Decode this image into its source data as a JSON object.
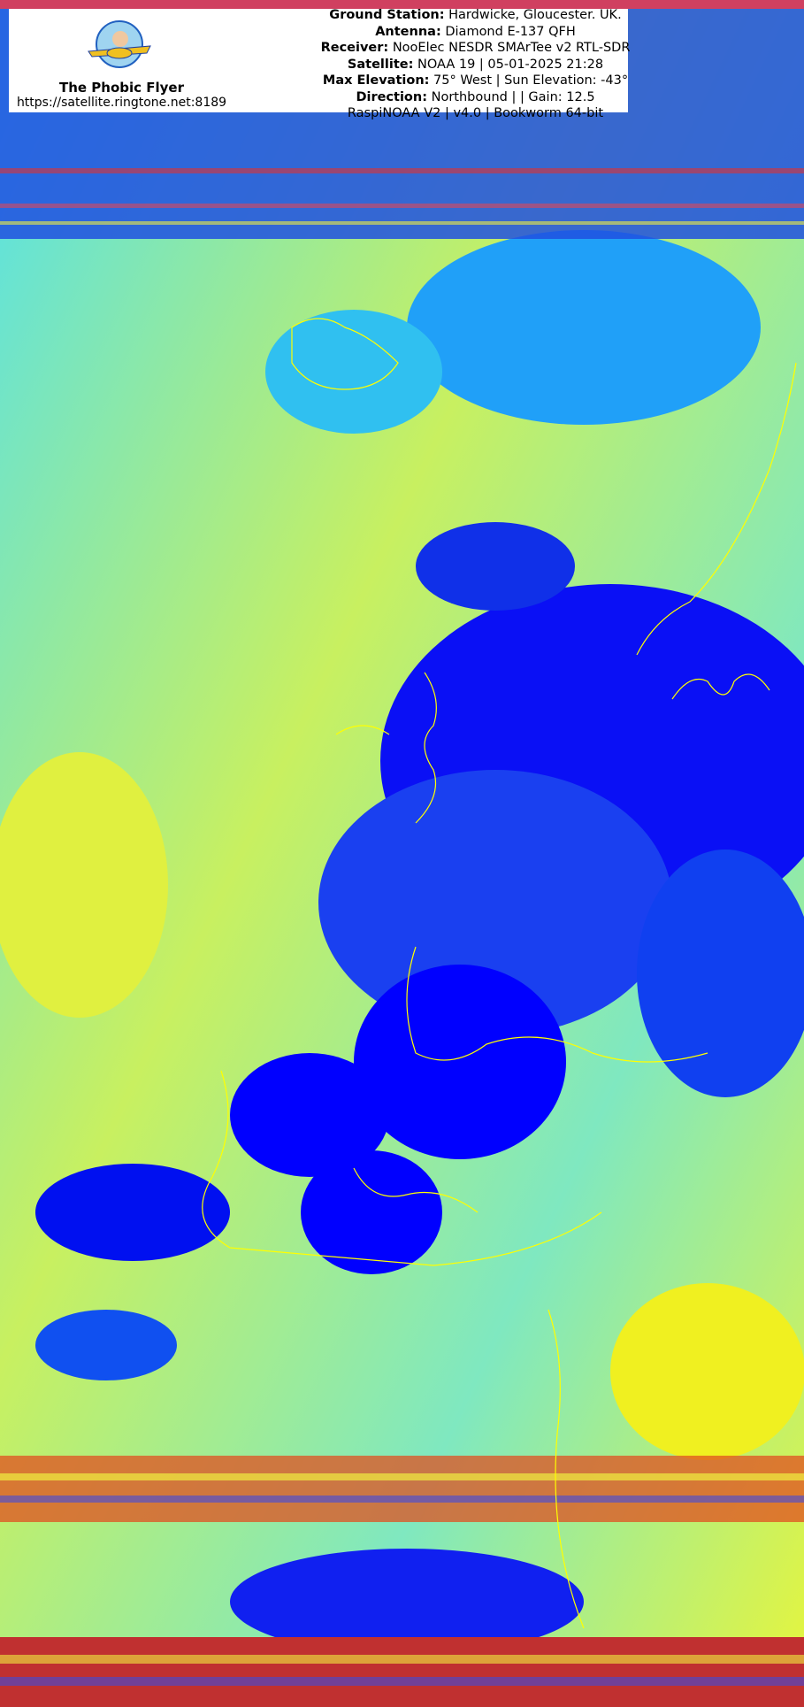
{
  "header": {
    "brand_name": "The Phobic Flyer",
    "url": "https://satellite.ringtone.net:8189",
    "logo_text": "The Phobic Flyer",
    "info_lines": [
      {
        "label": "Ground Station:",
        "value": " Hardwicke, Gloucester. UK."
      },
      {
        "label": "Antenna:",
        "value": " Diamond E-137 QFH"
      },
      {
        "label": "Receiver:",
        "value": " NooElec NESDR SMArTee v2 RTL-SDR"
      },
      {
        "label": "Satellite:",
        "value": " NOAA 19 | 05-01-2025 21:28"
      },
      {
        "label": "Max Elevation:",
        "value": " 75° West | Sun Elevation: -43°"
      },
      {
        "label": "Direction:",
        "value": " Northbound | | Gain: 12.5"
      },
      {
        "label": "",
        "value": "RaspiNOAA V2 | v4.0 | Bookworm 64-bit"
      }
    ]
  },
  "image": {
    "palette": {
      "deep_cloud": "#0000ff",
      "cloud": "#1e90ff",
      "mid": "#00e5ff",
      "sea": "#e8f53a",
      "coast": "#ffff00",
      "noise_red": "#e02020"
    }
  }
}
